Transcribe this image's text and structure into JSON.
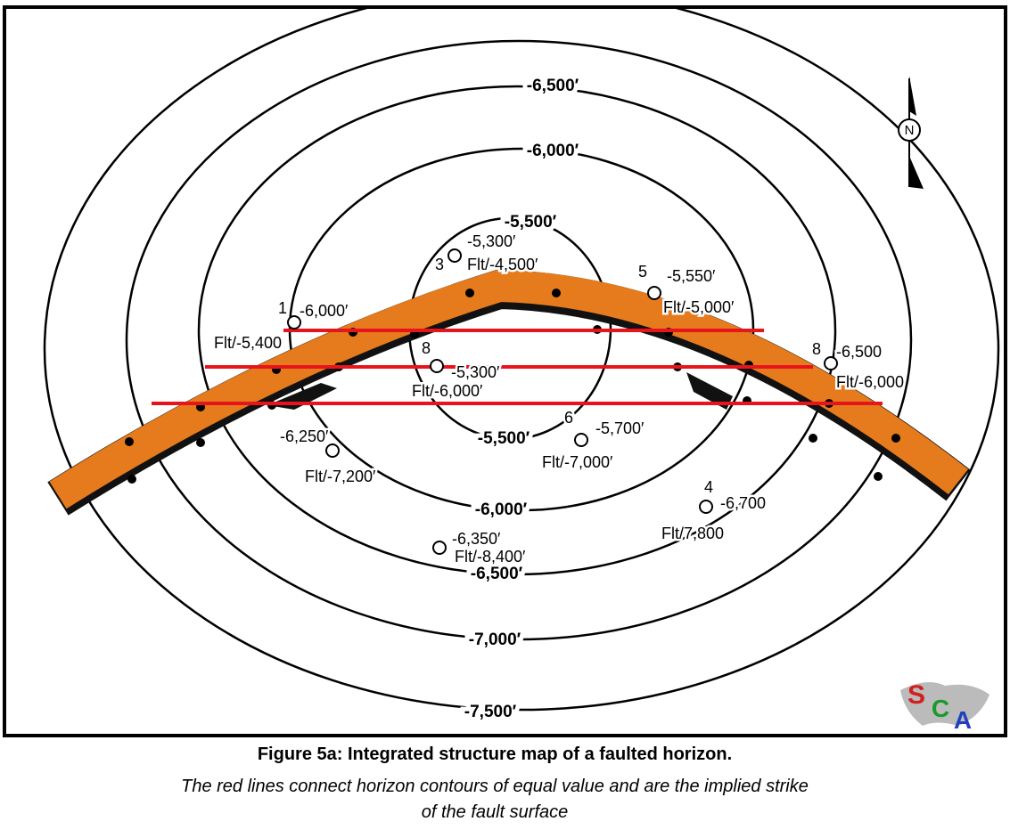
{
  "map": {
    "contour_labels": [
      "-6,500′",
      "-6,000′",
      "-5,500′",
      "-5,500′",
      "-6,000′",
      "-6,500′",
      "-7,000′",
      "-7,500′"
    ],
    "wells": [
      {
        "number": "1",
        "depth": "-6,000′",
        "fault": "Flt/-5,400"
      },
      {
        "number": "3",
        "depth": "-5,300′",
        "fault": "Flt/-4,500′"
      },
      {
        "number": "5",
        "depth": "-5,550′",
        "fault": "Flt/-5,000′"
      },
      {
        "number": "8",
        "depth": "-5,300′",
        "fault": "Flt/-6,000′"
      },
      {
        "number": "8",
        "depth": "-6,500",
        "fault": "Flt/-6,000"
      },
      {
        "number": "6",
        "depth": "-5,700′",
        "fault": "Flt/-7,000′"
      },
      {
        "depth": "-6,250′",
        "fault": "Flt/-7,200′"
      },
      {
        "number": "4",
        "depth": "-6,700",
        "fault": "Flt/7,800"
      },
      {
        "depth": "-6,350′",
        "fault": "Flt/-8,400′"
      }
    ],
    "north": "N",
    "logo": [
      "S",
      "C",
      "A"
    ]
  },
  "caption": {
    "title": "Figure 5a: Integrated structure map of a faulted horizon.",
    "subtitle": [
      "The red lines connect horizon contours of equal value and are the implied strike",
      "of the fault surface"
    ]
  }
}
